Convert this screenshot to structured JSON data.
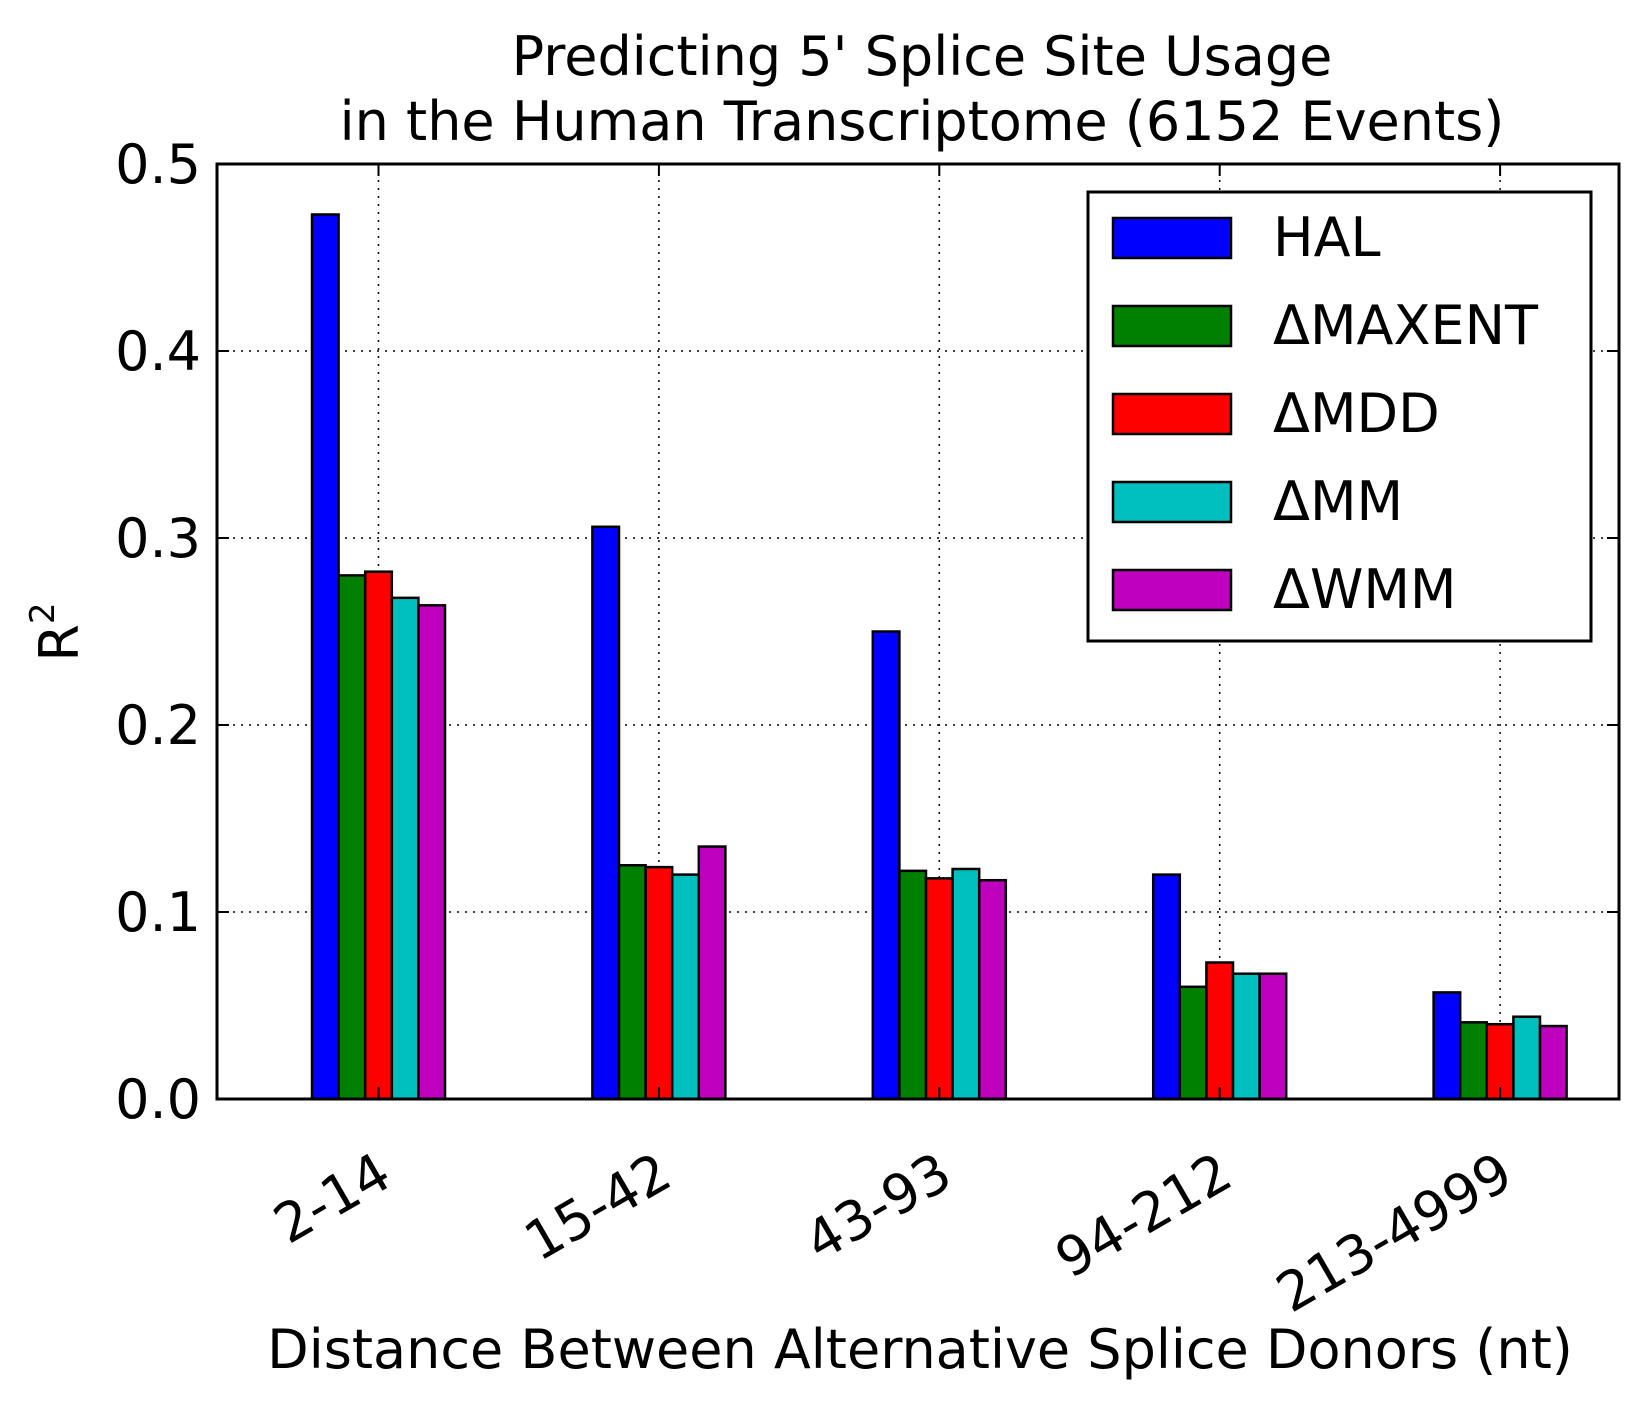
{
  "chart_data": {
    "type": "bar",
    "title_line1": "Predicting 5' Splice Site Usage",
    "title_line2": "in the Human Transcriptome (6152 Events)",
    "xlabel": "Distance Between Alternative Splice Donors (nt)",
    "ylabel_base": "R",
    "ylabel_superscript": "2",
    "categories": [
      "2-14",
      "15-42",
      "43-93",
      "94-212",
      "213-4999"
    ],
    "ylim": [
      0.0,
      0.5
    ],
    "yticks": [
      "0.0",
      "0.1",
      "0.2",
      "0.3",
      "0.4",
      "0.5"
    ],
    "grid": true,
    "legend_position": "top-right",
    "series": [
      {
        "name": "HAL",
        "color": "#0000ff",
        "values": [
          0.473,
          0.306,
          0.25,
          0.12,
          0.057
        ]
      },
      {
        "name": "ΔMAXENT",
        "color": "#008000",
        "values": [
          0.28,
          0.125,
          0.122,
          0.06,
          0.041
        ]
      },
      {
        "name": "ΔMDD",
        "color": "#ff0000",
        "values": [
          0.282,
          0.124,
          0.118,
          0.073,
          0.04
        ]
      },
      {
        "name": "ΔMM",
        "color": "#00bfbf",
        "values": [
          0.268,
          0.12,
          0.123,
          0.067,
          0.044
        ]
      },
      {
        "name": "ΔWMM",
        "color": "#bf00bf",
        "values": [
          0.264,
          0.135,
          0.117,
          0.067,
          0.039
        ]
      }
    ]
  }
}
